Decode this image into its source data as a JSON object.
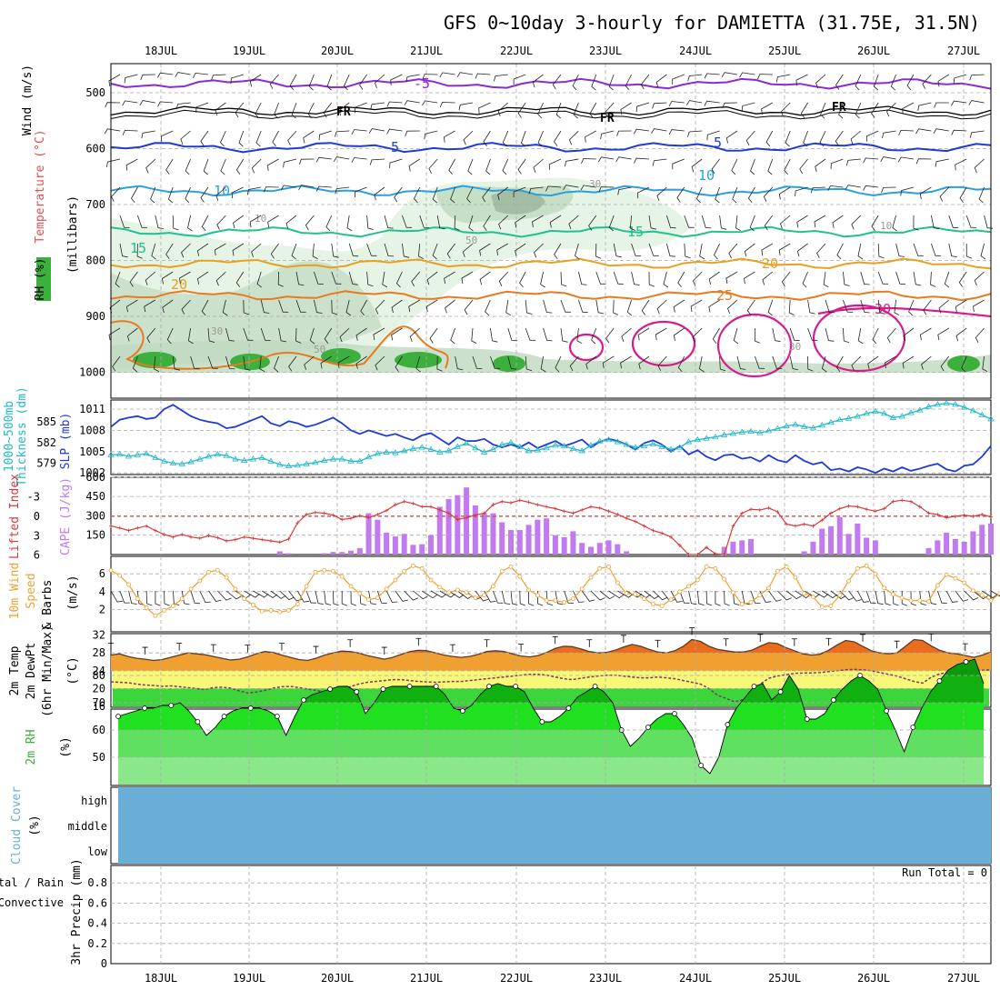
{
  "title": "GFS 0~10day 3-hourly for DAMIETTA (31.75E, 31.5N)",
  "run_total_text": "Run Total = 0",
  "colors": {
    "rh_light": "#e6f4e6",
    "rh_mid": "#bfd9bf",
    "rh_dark": "#9ab59a",
    "rh_sat": "#3cb03c",
    "purple": "#8a2bd6",
    "blue": "#1f3ad6",
    "cyan": "#2aa0e0",
    "teal": "#20c090",
    "amber": "#e8a020",
    "orange": "#e87a20",
    "magenta": "#d81b8c",
    "slp": "#1f3ad6",
    "thickness": "#22b8c8",
    "lifted": "#d63a3a",
    "cape": "#c27af0",
    "wind10m": "#f0a030",
    "temp_fill": "#f0a030",
    "temp_peak": "#e8641a",
    "dew_band": "#f8f878",
    "dew_green": "#3cd63c",
    "rh_green": "#20e020",
    "rh_dark_green": "#10b010",
    "rh_band1": "#60e060",
    "rh_band2": "#8ae88a",
    "cloud": "#6aaed6"
  },
  "chart_data": [
    {
      "panel": "upper_air",
      "type": "contour",
      "x_ticks": [
        "18JUL",
        "19JUL",
        "20JUL",
        "21JUL",
        "22JUL",
        "23JUL",
        "24JUL",
        "25JUL",
        "26JUL",
        "27JUL"
      ],
      "y_ticks": [
        "500",
        "600",
        "700",
        "800",
        "900",
        "1000"
      ],
      "y_label_wind": "Wind (m/s)",
      "y_label_temp": "Temperature (°C)",
      "y_label_rh": "RH (%)",
      "y_label_mb": "(millibars)",
      "contour_labels": [
        "-5",
        "FR",
        "5",
        "10",
        "15",
        "20",
        "25",
        "30"
      ],
      "rh_labels": [
        "10",
        "30",
        "50"
      ]
    },
    {
      "panel": "slp_thickness",
      "type": "line",
      "y_left_label": "1000~500mb Thickness (dm)",
      "y_left_ticks": [
        "585",
        "582",
        "579"
      ],
      "y_right_label": "SLP (mb)",
      "y_right_ticks": [
        "1011",
        "1008",
        "1005",
        "1002"
      ],
      "series": [
        {
          "name": "SLP",
          "values": [
            1008.5,
            1009.5,
            1009.8,
            1010,
            1009.6,
            1009.8,
            1011,
            1011.6,
            1010.8,
            1010,
            1009.5,
            1009.2,
            1009,
            1008.3,
            1008.5,
            1009,
            1009.5,
            1010,
            1009,
            1008.6,
            1009.3,
            1009,
            1008.5,
            1008.8,
            1009.3,
            1009.8,
            1009,
            1008,
            1007.5,
            1008,
            1007.6,
            1007.2,
            1007.5,
            1007,
            1006.6,
            1007.3,
            1007.6,
            1006.8,
            1006,
            1007,
            1006.5,
            1006.5,
            1006.8,
            1006,
            1005.6,
            1006,
            1005.6,
            1006.3,
            1005.5,
            1006,
            1006.5,
            1005.8,
            1006.2,
            1006.7,
            1005.6,
            1006.4,
            1006.8,
            1006.5,
            1006,
            1005.3,
            1006.2,
            1006.6,
            1006,
            1005,
            1005.8,
            1004.6,
            1005.2,
            1004.3,
            1003.8,
            1004.5,
            1004.6,
            1004,
            1004.2,
            1003.6,
            1004.5,
            1003.8,
            1003.5,
            1004.5,
            1003.7,
            1003.2,
            1003.5,
            1002.4,
            1002.6,
            1002.2,
            1002.8,
            1002.5,
            1002,
            1002.6,
            1002.2,
            1002.8,
            1002.3,
            1002.6,
            1003,
            1003.3,
            1002.5,
            1002.2,
            1003,
            1003.2,
            1004.3,
            1005.8
          ]
        },
        {
          "name": "Thickness",
          "values": [
            580.2,
            580.3,
            580,
            580.2,
            580.4,
            579.8,
            579.3,
            579,
            578.9,
            579.2,
            579.6,
            580,
            580.3,
            580.1,
            579.6,
            579.4,
            579.6,
            579.8,
            579.3,
            578.8,
            578.6,
            578.7,
            578.9,
            579.1,
            579.4,
            579.6,
            579.6,
            579.3,
            579.3,
            579.9,
            580.4,
            580.6,
            580.5,
            580.8,
            581.1,
            581.3,
            581,
            580.6,
            580.8,
            581.4,
            581.9,
            581.2,
            580.6,
            581,
            581.7,
            582,
            581.4,
            580.8,
            580.9,
            581.2,
            581.6,
            581.5,
            581.1,
            580.8,
            581.6,
            582.2,
            582.4,
            582.1,
            581.7,
            581.3,
            581.5,
            581.8,
            581.4,
            581,
            581.3,
            582.1,
            582.4,
            582.6,
            582.8,
            583.1,
            583.3,
            583.5,
            583.6,
            583.4,
            583.7,
            584,
            584.4,
            584.6,
            584.3,
            584.1,
            584.5,
            584.9,
            585.3,
            585.5,
            585.8,
            586.2,
            586.5,
            586.2,
            585.6,
            585.8,
            586.3,
            586.7,
            587.2,
            587.5,
            587.7,
            587.5,
            587.1,
            586.6,
            586,
            585.4
          ]
        }
      ]
    },
    {
      "panel": "lifted_cape",
      "type": "bar",
      "y_left_label": "Lifted Index",
      "y_left_ticks": [
        "-3",
        "0",
        "3",
        "6"
      ],
      "y_right_label": "CAPE (J/kg)",
      "y_right_ticks": [
        "600",
        "450",
        "300",
        "150"
      ],
      "series": [
        {
          "name": "Lifted Index",
          "values": [
            1.5,
            1.8,
            2.2,
            1.8,
            1.5,
            2.2,
            2.8,
            3.2,
            2.8,
            3.2,
            3.4,
            3.0,
            3.3,
            3.8,
            3.6,
            3.2,
            3.4,
            3.6,
            3.8,
            4.0,
            3.5,
            1,
            -0.3,
            -0.6,
            -0.5,
            -0.2,
            0.5,
            0.3,
            -0.1,
            0.2,
            -0.3,
            -0.9,
            -1.8,
            -2.3,
            -2.0,
            -1.5,
            -1.5,
            -1,
            -0.5,
            0.5,
            0.2,
            -0.2,
            -0.5,
            -1.8,
            -2.3,
            -2.1,
            -2.5,
            -2.2,
            -1.8,
            -1.5,
            -1.2,
            -0.8,
            -0.5,
            -1,
            -1.5,
            -1.3,
            -0.8,
            -0.3,
            0.3,
            0.8,
            1.5,
            2.2,
            2.6,
            3.2,
            4.5,
            6,
            6.2,
            4.8,
            5.8,
            6.3,
            1.5,
            -0.5,
            -1.1,
            -1.0,
            -1.3,
            -0.7,
            1.2,
            1.5,
            1.2,
            1.5,
            0.6,
            -0.5,
            -1.2,
            -1.6,
            -1.5,
            -1.1,
            -0.8,
            -1.2,
            -2.3,
            -2.5,
            -2.3,
            -1.5,
            -0.5,
            -0.3,
            0.2,
            0,
            -0.2,
            0,
            -0.3,
            0.1
          ]
        },
        {
          "name": "CAPE",
          "values": [
            0,
            0,
            0,
            0,
            0,
            0,
            0,
            0,
            0,
            0,
            0,
            0,
            0,
            0,
            0,
            0,
            0,
            0,
            0,
            25,
            10,
            0,
            0,
            0,
            10,
            20,
            20,
            30,
            50,
            320,
            270,
            170,
            140,
            160,
            75,
            80,
            150,
            370,
            430,
            460,
            520,
            380,
            320,
            320,
            250,
            190,
            190,
            230,
            270,
            280,
            150,
            135,
            180,
            90,
            60,
            90,
            110,
            80,
            25,
            0,
            0,
            0,
            0,
            0,
            0,
            0,
            0,
            0,
            0,
            60,
            100,
            110,
            120,
            0,
            0,
            0,
            0,
            0,
            25,
            100,
            200,
            220,
            290,
            160,
            240,
            130,
            110,
            0,
            0,
            0,
            0,
            0,
            50,
            110,
            170,
            120,
            100,
            180,
            230,
            240
          ]
        }
      ]
    },
    {
      "panel": "wind10m",
      "type": "line",
      "y_label": "10m Wind Speed & Barbs",
      "y_unit": "(m/s)",
      "y_ticks": [
        "6",
        "4",
        "2"
      ],
      "series": [
        {
          "name": "10m Wind Speed",
          "values": [
            6.4,
            5.8,
            4.8,
            3.2,
            2.2,
            1.3,
            1.9,
            2.4,
            3.2,
            4.3,
            5.2,
            6.2,
            6.4,
            5.6,
            4.3,
            3.2,
            2.5,
            1.8,
            1.9,
            1.7,
            1.9,
            2.6,
            4.6,
            6.2,
            6.4,
            6.3,
            5.7,
            4.6,
            3.8,
            3.1,
            3.3,
            4.3,
            5.3,
            6.3,
            6.9,
            6.6,
            5.3,
            4.5,
            3.9,
            4.2,
            3.9,
            3.3,
            3.6,
            4.6,
            6.3,
            6.8,
            5.7,
            4.2,
            3.6,
            3.0,
            3.0,
            2.8,
            3.2,
            4.3,
            5.6,
            6.6,
            6.8,
            5.0,
            3.8,
            3.7,
            3.2,
            2.6,
            2.4,
            3.1,
            4.0,
            4.6,
            5.3,
            6.8,
            6.6,
            5.4,
            3.9,
            2.6,
            2.8,
            3.6,
            4.4,
            6.3,
            6.8,
            5.6,
            3.8,
            3.4,
            2.3,
            2.4,
            3.6,
            5.2,
            6.6,
            6.9,
            6.0,
            4.4,
            3.7,
            3.3,
            3.0,
            3.0,
            2.9,
            4.7,
            5.9,
            5.5,
            5.0,
            4.1,
            3.6,
            3.0,
            3.8,
            4.5,
            5.6,
            6.0
          ]
        }
      ]
    },
    {
      "panel": "temp2m",
      "type": "area",
      "y_label": "2m Temp 2m DewPt (6hr Min/Max)",
      "y_unit": "(°C)",
      "y_ticks": [
        "32",
        "28",
        "24",
        "20",
        "16"
      ],
      "series": [
        {
          "name": "2m Temp",
          "values": [
            27.5,
            27.8,
            27.2,
            26.8,
            26.6,
            26.3,
            26.5,
            27,
            27.5,
            28,
            27.8,
            27.6,
            27.2,
            26.8,
            26.4,
            26.6,
            27.1,
            27.8,
            28.3,
            28.1,
            27.5,
            27,
            26.5,
            26.3,
            26.8,
            27.5,
            28,
            28.4,
            28.3,
            28,
            27.4,
            27,
            26.6,
            27,
            27.7,
            28.3,
            28.6,
            28.5,
            28,
            27.5,
            27.2,
            27,
            27.2,
            27.7,
            28.3,
            28.5,
            28.3,
            27.8,
            27.3,
            27.1,
            27.4,
            28.1,
            29,
            29.5,
            29.4,
            28.9,
            28.3,
            28,
            28.1,
            28.6,
            29.3,
            29.9,
            29.5,
            28.8,
            28.2,
            28,
            28.5,
            29.5,
            31,
            30.6,
            29.5,
            28.8,
            28.5,
            28.2,
            28.2,
            28.6,
            29.5,
            30.3,
            30.1,
            29.2,
            28.5,
            27.8,
            27.5,
            27.7,
            28.6,
            29.8,
            30.8,
            30.5,
            29.5,
            28.5,
            28,
            27.8,
            28,
            29.5,
            31,
            30.8,
            29.6,
            28.6,
            28,
            27.8,
            27.4,
            27,
            27.5,
            28.2
          ]
        },
        {
          "name": "2m DewPt",
          "values": [
            21.5,
            21.4,
            21.3,
            21,
            20.8,
            20.7,
            20.5,
            20.6,
            20.4,
            20.2,
            20,
            19.8,
            20.2,
            20.3,
            20.1,
            19.5,
            19,
            19.2,
            19.6,
            20.1,
            20.4,
            20.5,
            20.2,
            19.9,
            19.6,
            19.2,
            18.9,
            19.5,
            20.4,
            21,
            21.4,
            21.6,
            21.8,
            22,
            22,
            21.8,
            21.6,
            21.5,
            21.4,
            21.5,
            21.6,
            21.6,
            21.8,
            22,
            22.2,
            22.4,
            22.6,
            22.8,
            23,
            23.2,
            23.2,
            23,
            22.6,
            22.2,
            22,
            22.3,
            22.6,
            22.8,
            23,
            23,
            22.8,
            22.6,
            22.4,
            22.4,
            22.6,
            22.4,
            22.2,
            21.8,
            21.4,
            21,
            20,
            18.5,
            17.8,
            17,
            17.5,
            19,
            21,
            22.3,
            22.8,
            23.1,
            23.4,
            23.5,
            23.5,
            23.6,
            23.8,
            24,
            24.2,
            24.3,
            24.2,
            24,
            23.6,
            23.2,
            22.8,
            22.2,
            21.6,
            21.2,
            22.5,
            23.3,
            23.6,
            23.8,
            23.9,
            24,
            24.1,
            24.2
          ]
        }
      ]
    },
    {
      "panel": "rh2m",
      "type": "area",
      "y_label": "2m RH",
      "y_unit": "(%)",
      "y_ticks": [
        "80",
        "70",
        "60",
        "50"
      ],
      "series": [
        {
          "name": "2m RH",
          "values": [
            65,
            66,
            67,
            68,
            68,
            69,
            69,
            70,
            67,
            63,
            58,
            61,
            65,
            67,
            68,
            68,
            68,
            67,
            65,
            58,
            65,
            71,
            73,
            74,
            75,
            76,
            76,
            74,
            66,
            70,
            75,
            76,
            76,
            76,
            76,
            76,
            76,
            73,
            68,
            67,
            69,
            73,
            76,
            77,
            76,
            76,
            74,
            68,
            63,
            63,
            65,
            68,
            72,
            74,
            76,
            74,
            70,
            60,
            54,
            57,
            61,
            64,
            66,
            66,
            62,
            57,
            47,
            44,
            50,
            62,
            68,
            72,
            76,
            77,
            71,
            74,
            80,
            75,
            64,
            64,
            66,
            71,
            75,
            78,
            80,
            78,
            75,
            67,
            60,
            52,
            61,
            68,
            74,
            78,
            82,
            84,
            85,
            86,
            77
          ]
        }
      ]
    },
    {
      "panel": "cloud",
      "type": "area",
      "y_label": "Cloud Cover",
      "y_unit": "(%)",
      "y_ticks": [
        "high",
        "middle",
        "low"
      ]
    },
    {
      "panel": "precip",
      "type": "bar",
      "y_label_left": "Total / Rain",
      "y_label_left2": "Convective",
      "y_label": "3hr Precip (mm)",
      "y_ticks": [
        "0.8",
        "0.6",
        "0.4",
        "0.2",
        "0"
      ],
      "x_ticks": [
        "18JUL",
        "19JUL",
        "20JUL",
        "21JUL",
        "22JUL",
        "23JUL",
        "24JUL",
        "25JUL",
        "26JUL",
        "27JUL"
      ],
      "values": []
    }
  ]
}
